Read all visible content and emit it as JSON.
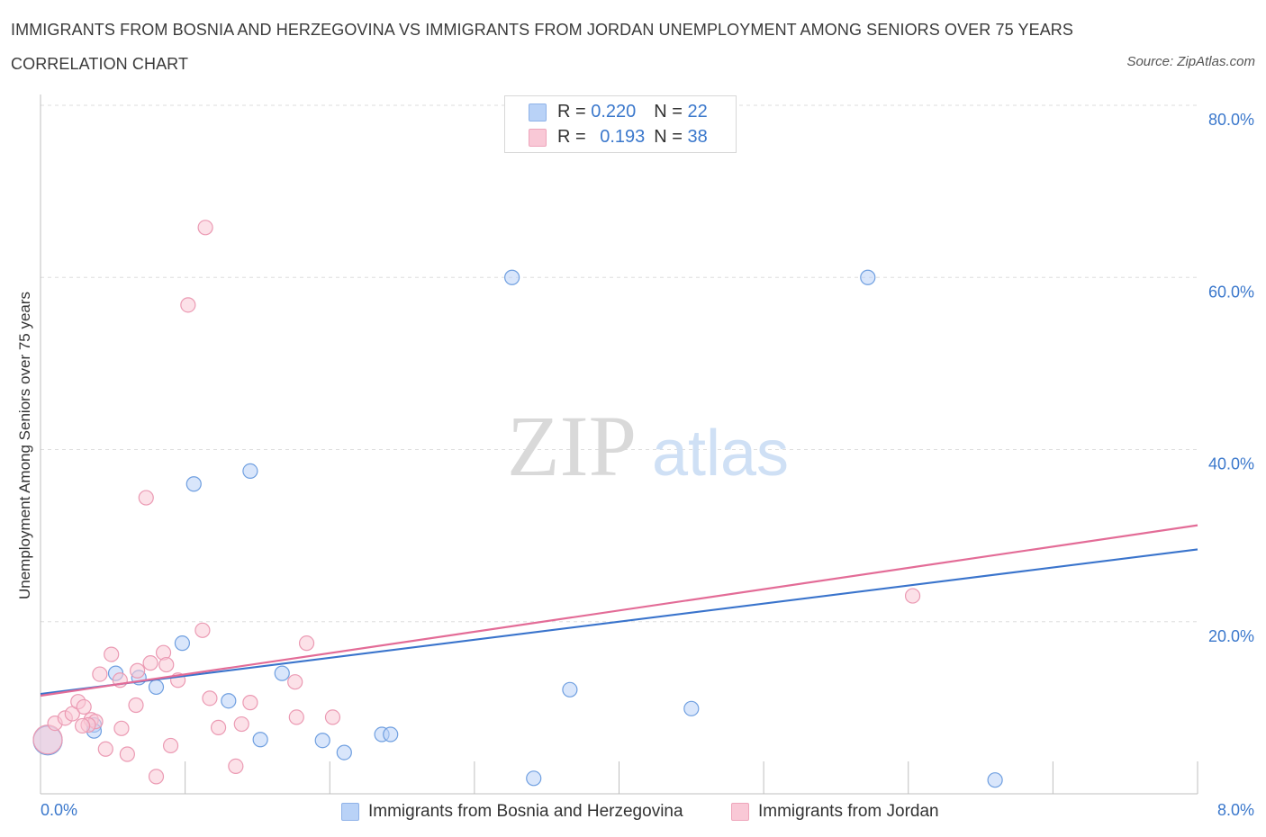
{
  "header": {
    "title": "IMMIGRANTS FROM BOSNIA AND HERZEGOVINA VS IMMIGRANTS FROM JORDAN UNEMPLOYMENT AMONG SENIORS OVER 75 YEARS CORRELATION CHART",
    "source": "Source: ZipAtlas.com"
  },
  "legend_top": {
    "rows": [
      {
        "r_label": "R = ",
        "r_value": "0.220",
        "n_label": "N = ",
        "n_value": "22"
      },
      {
        "r_label": "R = ",
        "r_value": "0.193",
        "n_label": "N = ",
        "n_value": "38"
      }
    ]
  },
  "legend_bottom": {
    "series1": "Immigrants from Bosnia and Herzegovina",
    "series2": "Immigrants from Jordan"
  },
  "watermark": {
    "part1": "ZIP",
    "part2": "atlas"
  },
  "colors": {
    "blue_fill": "#b9d2f7",
    "blue_stroke": "#6f9fe0",
    "blue_line": "#3a74cc",
    "pink_fill": "#f9c8d6",
    "pink_stroke": "#eb9ab3",
    "pink_line": "#e36c97",
    "tick_text": "#3b78cc",
    "grid": "#dedede"
  },
  "chart_data": {
    "type": "scatter",
    "title": "IMMIGRANTS FROM BOSNIA AND HERZEGOVINA VS IMMIGRANTS FROM JORDAN UNEMPLOYMENT AMONG SENIORS OVER 75 YEARS CORRELATION CHART",
    "xlabel": "",
    "ylabel": "Unemployment Among Seniors over 75 years",
    "xlim": [
      0,
      8
    ],
    "ylim": [
      0,
      80
    ],
    "x_tick_labels": [
      "0.0%",
      "8.0%"
    ],
    "y_ticks": [
      20,
      40,
      60,
      80
    ],
    "y_tick_labels": [
      "20.0%",
      "40.0%",
      "60.0%",
      "80.0%"
    ],
    "grid": true,
    "series": [
      {
        "name": "Immigrants from Bosnia and Herzegovina",
        "color": "blue",
        "R": 0.22,
        "N": 22,
        "trend": {
          "x": [
            0,
            8
          ],
          "y": [
            11.6,
            28.4
          ]
        },
        "points": [
          {
            "x": 0.05,
            "y": 6.2,
            "big": true
          },
          {
            "x": 0.37,
            "y": 8.0
          },
          {
            "x": 0.37,
            "y": 7.3
          },
          {
            "x": 0.52,
            "y": 14.0
          },
          {
            "x": 0.68,
            "y": 13.5
          },
          {
            "x": 0.8,
            "y": 12.4
          },
          {
            "x": 0.98,
            "y": 17.5
          },
          {
            "x": 1.06,
            "y": 36.0
          },
          {
            "x": 1.3,
            "y": 10.8
          },
          {
            "x": 1.45,
            "y": 37.5
          },
          {
            "x": 1.52,
            "y": 6.3
          },
          {
            "x": 1.67,
            "y": 14.0
          },
          {
            "x": 1.95,
            "y": 6.2
          },
          {
            "x": 2.1,
            "y": 4.8
          },
          {
            "x": 2.36,
            "y": 6.9
          },
          {
            "x": 2.42,
            "y": 6.9
          },
          {
            "x": 3.26,
            "y": 60.0
          },
          {
            "x": 3.41,
            "y": 1.8
          },
          {
            "x": 3.66,
            "y": 12.1
          },
          {
            "x": 4.5,
            "y": 9.9
          },
          {
            "x": 5.72,
            "y": 60.0
          },
          {
            "x": 6.6,
            "y": 1.6
          }
        ]
      },
      {
        "name": "Immigrants from Jordan",
        "color": "pink",
        "R": 0.193,
        "N": 38,
        "trend": {
          "x": [
            0,
            8
          ],
          "y": [
            11.4,
            31.2
          ]
        },
        "points": [
          {
            "x": 0.05,
            "y": 6.3,
            "big": true
          },
          {
            "x": 0.1,
            "y": 8.2
          },
          {
            "x": 0.17,
            "y": 8.8
          },
          {
            "x": 0.22,
            "y": 9.3
          },
          {
            "x": 0.26,
            "y": 10.7
          },
          {
            "x": 0.3,
            "y": 10.1
          },
          {
            "x": 0.35,
            "y": 8.6
          },
          {
            "x": 0.38,
            "y": 8.4
          },
          {
            "x": 0.41,
            "y": 13.9
          },
          {
            "x": 0.45,
            "y": 5.2
          },
          {
            "x": 0.49,
            "y": 16.2
          },
          {
            "x": 0.55,
            "y": 13.2
          },
          {
            "x": 0.56,
            "y": 7.6
          },
          {
            "x": 0.6,
            "y": 4.6
          },
          {
            "x": 0.66,
            "y": 10.3
          },
          {
            "x": 0.67,
            "y": 14.3
          },
          {
            "x": 0.73,
            "y": 34.4
          },
          {
            "x": 0.76,
            "y": 15.2
          },
          {
            "x": 0.8,
            "y": 2.0
          },
          {
            "x": 0.85,
            "y": 16.4
          },
          {
            "x": 0.87,
            "y": 15.0
          },
          {
            "x": 0.9,
            "y": 5.6
          },
          {
            "x": 0.95,
            "y": 13.2
          },
          {
            "x": 1.02,
            "y": 56.8
          },
          {
            "x": 1.12,
            "y": 19.0
          },
          {
            "x": 1.14,
            "y": 65.8
          },
          {
            "x": 1.17,
            "y": 11.1
          },
          {
            "x": 1.23,
            "y": 7.7
          },
          {
            "x": 1.35,
            "y": 3.2
          },
          {
            "x": 1.39,
            "y": 8.1
          },
          {
            "x": 1.45,
            "y": 10.6
          },
          {
            "x": 1.76,
            "y": 13.0
          },
          {
            "x": 1.77,
            "y": 8.9
          },
          {
            "x": 1.84,
            "y": 17.5
          },
          {
            "x": 2.02,
            "y": 8.9
          },
          {
            "x": 6.03,
            "y": 23.0
          },
          {
            "x": 0.33,
            "y": 8.0
          },
          {
            "x": 0.29,
            "y": 7.9
          }
        ]
      }
    ]
  }
}
